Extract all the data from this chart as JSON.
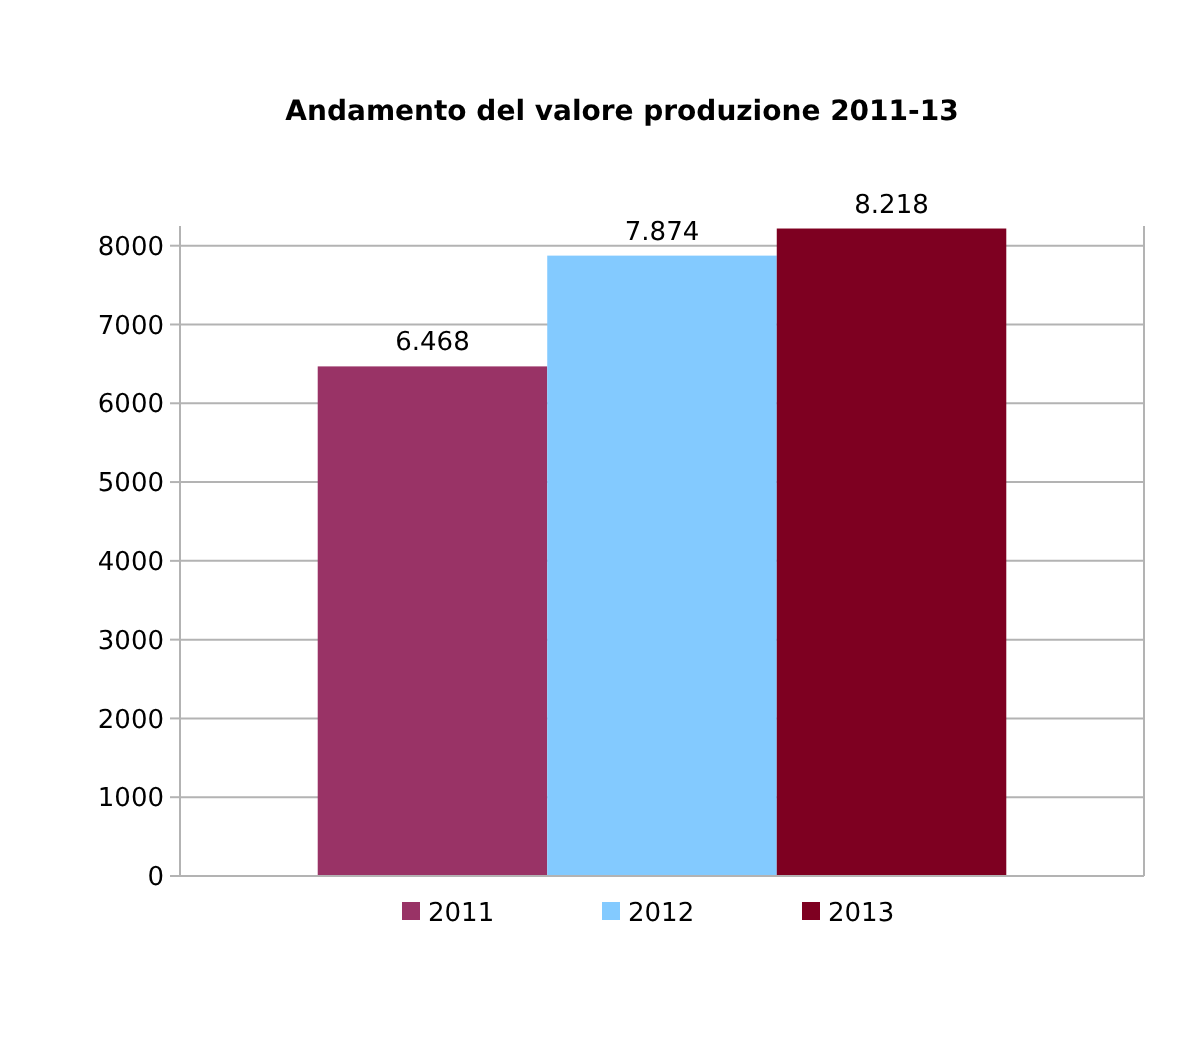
{
  "chart_data": {
    "type": "bar",
    "title": "Andamento del valore produzione 2011-13",
    "categories": [
      null
    ],
    "series": [
      {
        "name": "2011",
        "color": "#993366",
        "values": [
          6468
        ],
        "value_labels": [
          "6.468"
        ]
      },
      {
        "name": "2012",
        "color": "#83caff",
        "values": [
          7874
        ],
        "value_labels": [
          "7.874"
        ]
      },
      {
        "name": "2013",
        "color": "#7e0021",
        "values": [
          8218
        ],
        "value_labels": [
          "8.218"
        ]
      }
    ],
    "ylim": [
      0,
      8250
    ],
    "yticks": [
      0,
      1000,
      2000,
      3000,
      4000,
      5000,
      6000,
      7000,
      8000
    ],
    "grid": "y",
    "legend": "bottom"
  }
}
